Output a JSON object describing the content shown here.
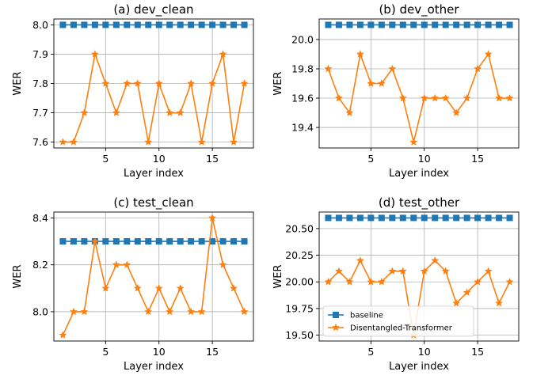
{
  "chart_data": [
    {
      "type": "line",
      "title": "(a) dev_clean",
      "xlabel": "Layer index",
      "ylabel": "WER",
      "xlim": [
        0.15,
        18.85
      ],
      "ylim": [
        7.58,
        8.02
      ],
      "xticks": [
        5,
        10,
        15
      ],
      "xtick_labels": [
        "5",
        "10",
        "15"
      ],
      "yticks": [
        7.6,
        7.7,
        7.8,
        7.9,
        8.0
      ],
      "ytick_labels": [
        "7.6",
        "7.7",
        "7.8",
        "7.9",
        "8.0"
      ],
      "grid": true,
      "x": [
        1,
        2,
        3,
        4,
        5,
        6,
        7,
        8,
        9,
        10,
        11,
        12,
        13,
        14,
        15,
        16,
        17,
        18
      ],
      "series": [
        {
          "name": "baseline",
          "marker": "square",
          "color": "#1f77b4",
          "values": [
            8.0,
            8.0,
            8.0,
            8.0,
            8.0,
            8.0,
            8.0,
            8.0,
            8.0,
            8.0,
            8.0,
            8.0,
            8.0,
            8.0,
            8.0,
            8.0,
            8.0,
            8.0
          ]
        },
        {
          "name": "Disentangled-Transformer",
          "marker": "star",
          "color": "#ff7f0e",
          "values": [
            7.6,
            7.6,
            7.7,
            7.9,
            7.8,
            7.7,
            7.8,
            7.8,
            7.6,
            7.8,
            7.7,
            7.7,
            7.8,
            7.6,
            7.8,
            7.9,
            7.6,
            7.8
          ]
        }
      ],
      "legend": null
    },
    {
      "type": "line",
      "title": "(b) dev_other",
      "xlabel": "Layer index",
      "ylabel": "WER",
      "xlim": [
        0.15,
        18.85
      ],
      "ylim": [
        19.26,
        20.14
      ],
      "xticks": [
        5,
        10,
        15
      ],
      "xtick_labels": [
        "5",
        "10",
        "15"
      ],
      "yticks": [
        19.4,
        19.6,
        19.8,
        20.0
      ],
      "ytick_labels": [
        "19.4",
        "19.6",
        "19.8",
        "20.0"
      ],
      "grid": true,
      "x": [
        1,
        2,
        3,
        4,
        5,
        6,
        7,
        8,
        9,
        10,
        11,
        12,
        13,
        14,
        15,
        16,
        17,
        18
      ],
      "series": [
        {
          "name": "baseline",
          "marker": "square",
          "color": "#1f77b4",
          "values": [
            20.1,
            20.1,
            20.1,
            20.1,
            20.1,
            20.1,
            20.1,
            20.1,
            20.1,
            20.1,
            20.1,
            20.1,
            20.1,
            20.1,
            20.1,
            20.1,
            20.1,
            20.1
          ]
        },
        {
          "name": "Disentangled-Transformer",
          "marker": "star",
          "color": "#ff7f0e",
          "values": [
            19.8,
            19.6,
            19.5,
            19.9,
            19.7,
            19.7,
            19.8,
            19.6,
            19.3,
            19.6,
            19.6,
            19.6,
            19.5,
            19.6,
            19.8,
            19.9,
            19.6,
            19.6
          ]
        }
      ],
      "legend": null
    },
    {
      "type": "line",
      "title": "(c) test_clean",
      "xlabel": "Layer index",
      "ylabel": "WER",
      "xlim": [
        0.15,
        18.85
      ],
      "ylim": [
        7.875,
        8.425
      ],
      "xticks": [
        5,
        10,
        15
      ],
      "xtick_labels": [
        "5",
        "10",
        "15"
      ],
      "yticks": [
        8.0,
        8.2,
        8.4
      ],
      "ytick_labels": [
        "8.0",
        "8.2",
        "8.4"
      ],
      "grid": true,
      "x": [
        1,
        2,
        3,
        4,
        5,
        6,
        7,
        8,
        9,
        10,
        11,
        12,
        13,
        14,
        15,
        16,
        17,
        18
      ],
      "series": [
        {
          "name": "baseline",
          "marker": "square",
          "color": "#1f77b4",
          "values": [
            8.3,
            8.3,
            8.3,
            8.3,
            8.3,
            8.3,
            8.3,
            8.3,
            8.3,
            8.3,
            8.3,
            8.3,
            8.3,
            8.3,
            8.3,
            8.3,
            8.3,
            8.3
          ]
        },
        {
          "name": "Disentangled-Transformer",
          "marker": "star",
          "color": "#ff7f0e",
          "values": [
            7.9,
            8.0,
            8.0,
            8.3,
            8.1,
            8.2,
            8.2,
            8.1,
            8.0,
            8.1,
            8.0,
            8.1,
            8.0,
            8.0,
            8.4,
            8.2,
            8.1,
            8.0
          ]
        }
      ],
      "legend": null
    },
    {
      "type": "line",
      "title": "(d) test_other",
      "xlabel": "Layer index",
      "ylabel": "WER",
      "xlim": [
        0.15,
        18.85
      ],
      "ylim": [
        19.445,
        20.655
      ],
      "xticks": [
        5,
        10,
        15
      ],
      "xtick_labels": [
        "5",
        "10",
        "15"
      ],
      "yticks": [
        19.5,
        19.75,
        20.0,
        20.25,
        20.5
      ],
      "ytick_labels": [
        "19.50",
        "19.75",
        "20.00",
        "20.25",
        "20.50"
      ],
      "grid": true,
      "x": [
        1,
        2,
        3,
        4,
        5,
        6,
        7,
        8,
        9,
        10,
        11,
        12,
        13,
        14,
        15,
        16,
        17,
        18
      ],
      "series": [
        {
          "name": "baseline",
          "marker": "square",
          "color": "#1f77b4",
          "values": [
            20.6,
            20.6,
            20.6,
            20.6,
            20.6,
            20.6,
            20.6,
            20.6,
            20.6,
            20.6,
            20.6,
            20.6,
            20.6,
            20.6,
            20.6,
            20.6,
            20.6,
            20.6
          ]
        },
        {
          "name": "Disentangled-Transformer",
          "marker": "star",
          "color": "#ff7f0e",
          "values": [
            20.0,
            20.1,
            20.0,
            20.2,
            20.0,
            20.0,
            20.1,
            20.1,
            19.5,
            20.1,
            20.2,
            20.1,
            19.8,
            19.9,
            20.0,
            20.1,
            19.8,
            20.0
          ]
        }
      ],
      "legend": "lower-left"
    }
  ]
}
